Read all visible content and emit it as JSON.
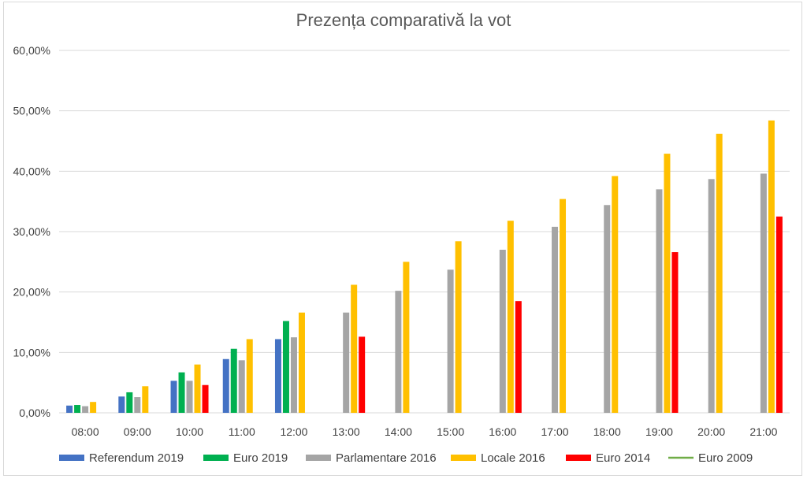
{
  "chart_data": {
    "type": "bar",
    "title": "Prezența comparativă la vot",
    "xlabel": "",
    "ylabel": "",
    "ylim": [
      0,
      60
    ],
    "y_ticks": [
      "0,00%",
      "10,00%",
      "20,00%",
      "30,00%",
      "40,00%",
      "50,00%",
      "60,00%"
    ],
    "y_tick_values": [
      0,
      10,
      20,
      30,
      40,
      50,
      60
    ],
    "grid": true,
    "legend_position": "bottom",
    "categories": [
      "08:00",
      "09:00",
      "10:00",
      "11:00",
      "12:00",
      "13:00",
      "14:00",
      "15:00",
      "16:00",
      "17:00",
      "18:00",
      "19:00",
      "20:00",
      "21:00"
    ],
    "series": [
      {
        "name": "Referendum 2019",
        "color": "#4472C4",
        "marker": "bar",
        "values": [
          1.2,
          2.7,
          5.3,
          8.9,
          12.2,
          null,
          null,
          null,
          null,
          null,
          null,
          null,
          null,
          null
        ]
      },
      {
        "name": "Euro 2019",
        "color": "#00B050",
        "marker": "bar",
        "values": [
          1.3,
          3.4,
          6.7,
          10.6,
          15.2,
          null,
          null,
          null,
          null,
          null,
          null,
          null,
          null,
          null
        ]
      },
      {
        "name": "Parlamentare 2016",
        "color": "#A5A5A5",
        "marker": "bar",
        "values": [
          1.1,
          2.6,
          5.3,
          8.7,
          12.5,
          16.6,
          20.2,
          23.7,
          27.0,
          30.8,
          34.4,
          37.0,
          38.7,
          39.6
        ]
      },
      {
        "name": "Locale 2016",
        "color": "#FFC000",
        "marker": "bar",
        "values": [
          1.8,
          4.4,
          8.0,
          12.2,
          16.6,
          21.2,
          25.0,
          28.4,
          31.8,
          35.4,
          39.2,
          42.9,
          46.2,
          48.4
        ]
      },
      {
        "name": "Euro 2014",
        "color": "#FF0000",
        "marker": "bar",
        "values": [
          null,
          null,
          4.6,
          null,
          null,
          12.6,
          null,
          null,
          18.5,
          null,
          null,
          26.6,
          null,
          32.5
        ]
      },
      {
        "name": "Euro 2009",
        "color": "#70AD47",
        "marker": "line",
        "values": [
          null,
          null,
          null,
          null,
          null,
          null,
          null,
          null,
          null,
          null,
          null,
          null,
          null,
          null
        ]
      }
    ]
  }
}
